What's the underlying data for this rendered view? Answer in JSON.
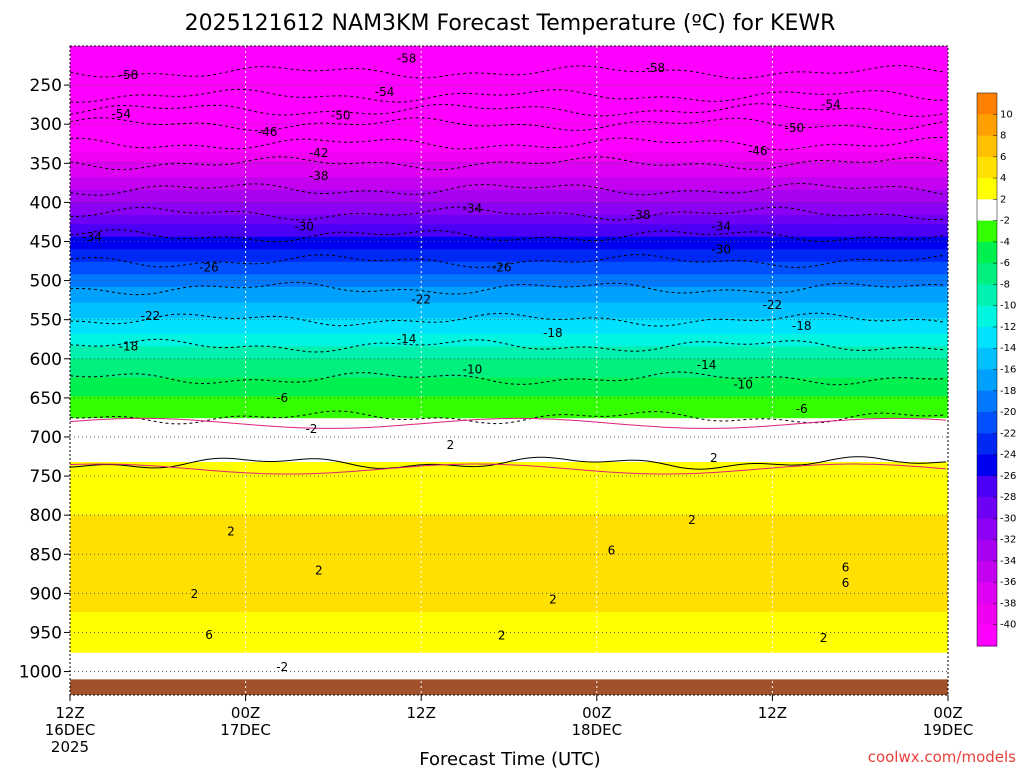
{
  "chart_data": {
    "type": "heatmap",
    "title": "2025121612 NAM3KM Forecast Temperature (ºC) for KEWR",
    "xlabel": "Forecast Time (UTC)",
    "ylabel": "",
    "credit": "coolwx.com/models",
    "x_axis": {
      "unit": "hours since 2025-12-16 12Z",
      "range": [
        0,
        60
      ],
      "ticks": [
        {
          "hour": 0,
          "lines": [
            "12Z",
            "16DEC",
            "2025"
          ]
        },
        {
          "hour": 12,
          "lines": [
            "00Z",
            "17DEC"
          ]
        },
        {
          "hour": 24,
          "lines": [
            "12Z"
          ]
        },
        {
          "hour": 36,
          "lines": [
            "00Z",
            "18DEC"
          ]
        },
        {
          "hour": 48,
          "lines": [
            "12Z"
          ]
        },
        {
          "hour": 60,
          "lines": [
            "00Z",
            "19DEC"
          ]
        }
      ]
    },
    "y_axis": {
      "unit": "hPa",
      "range": [
        1030,
        200
      ],
      "ticks": [
        250,
        300,
        350,
        400,
        450,
        500,
        550,
        600,
        650,
        700,
        750,
        800,
        850,
        900,
        950,
        1000
      ]
    },
    "colorbar": {
      "unit": "°C",
      "bins": [
        {
          "lo": -42,
          "hi": -40,
          "color": "#ff00ff"
        },
        {
          "lo": -40,
          "hi": -38,
          "color": "#f000f0"
        },
        {
          "lo": -38,
          "hi": -36,
          "color": "#dd00f2"
        },
        {
          "lo": -36,
          "hi": -34,
          "color": "#c300f0"
        },
        {
          "lo": -34,
          "hi": -32,
          "color": "#a800f0"
        },
        {
          "lo": -32,
          "hi": -30,
          "color": "#8c00f5"
        },
        {
          "lo": -30,
          "hi": -28,
          "color": "#6e00f5"
        },
        {
          "lo": -28,
          "hi": -26,
          "color": "#4b00f5"
        },
        {
          "lo": -26,
          "hi": -24,
          "color": "#0000f0"
        },
        {
          "lo": -24,
          "hi": -22,
          "color": "#0028f5"
        },
        {
          "lo": -22,
          "hi": -20,
          "color": "#0050ff"
        },
        {
          "lo": -20,
          "hi": -18,
          "color": "#0078ff"
        },
        {
          "lo": -18,
          "hi": -16,
          "color": "#00a0ff"
        },
        {
          "lo": -16,
          "hi": -14,
          "color": "#00c0ff"
        },
        {
          "lo": -14,
          "hi": -12,
          "color": "#00e0ff"
        },
        {
          "lo": -12,
          "hi": -10,
          "color": "#00f5e0"
        },
        {
          "lo": -10,
          "hi": -8,
          "color": "#00f0b0"
        },
        {
          "lo": -8,
          "hi": -6,
          "color": "#00f080"
        },
        {
          "lo": -6,
          "hi": -4,
          "color": "#00f050"
        },
        {
          "lo": -4,
          "hi": -2,
          "color": "#33ff00"
        },
        {
          "lo": -2,
          "hi": 2,
          "color": "#ffffff"
        },
        {
          "lo": 2,
          "hi": 4,
          "color": "#ffff00"
        },
        {
          "lo": 4,
          "hi": 6,
          "color": "#ffe000"
        },
        {
          "lo": 6,
          "hi": 8,
          "color": "#ffc000"
        },
        {
          "lo": 8,
          "hi": 10,
          "color": "#ffa000"
        },
        {
          "lo": 10,
          "hi": 12,
          "color": "#ff8000"
        }
      ],
      "tick_labels": [
        "10",
        "8",
        "6",
        "4",
        "2",
        "-2",
        "-4",
        "-6",
        "-8",
        "-10",
        "-12",
        "-14",
        "-16",
        "-18",
        "-20",
        "-22",
        "-24",
        "-26",
        "-28",
        "-30",
        "-32",
        "-34",
        "-36",
        "-38",
        "-40"
      ]
    },
    "ground_color": "#a0522d",
    "temperature_profile": [
      {
        "p": 200,
        "t": -60
      },
      {
        "p": 250,
        "t": -57
      },
      {
        "p": 300,
        "t": -46
      },
      {
        "p": 350,
        "t": -38
      },
      {
        "p": 400,
        "t": -32
      },
      {
        "p": 450,
        "t": -25
      },
      {
        "p": 500,
        "t": -19
      },
      {
        "p": 550,
        "t": -14
      },
      {
        "p": 600,
        "t": -8
      },
      {
        "p": 650,
        "t": -4
      },
      {
        "p": 700,
        "t": 0
      },
      {
        "p": 750,
        "t": 3
      },
      {
        "p": 800,
        "t": 4
      },
      {
        "p": 850,
        "t": 5
      },
      {
        "p": 900,
        "t": 5
      },
      {
        "p": 950,
        "t": 3
      },
      {
        "p": 1000,
        "t": 1
      },
      {
        "p": 1030,
        "t": 1
      }
    ],
    "contours": [
      {
        "level": -58,
        "labels": [
          {
            "hour": 4,
            "p": 237
          },
          {
            "hour": 23,
            "p": 216
          },
          {
            "hour": 40,
            "p": 228
          }
        ]
      },
      {
        "level": -54,
        "labels": [
          {
            "hour": 3.5,
            "p": 287
          },
          {
            "hour": 21.5,
            "p": 259
          },
          {
            "hour": 52,
            "p": 275
          }
        ]
      },
      {
        "level": -50,
        "labels": [
          {
            "hour": 18.5,
            "p": 289
          },
          {
            "hour": 49.5,
            "p": 305
          }
        ]
      },
      {
        "level": -46,
        "labels": [
          {
            "hour": 13.5,
            "p": 310
          },
          {
            "hour": 47,
            "p": 334
          }
        ]
      },
      {
        "level": -42,
        "labels": [
          {
            "hour": 17,
            "p": 337
          }
        ]
      },
      {
        "level": -38,
        "labels": [
          {
            "hour": 17,
            "p": 366
          },
          {
            "hour": 39,
            "p": 416
          }
        ]
      },
      {
        "level": -34,
        "labels": [
          {
            "hour": 1.5,
            "p": 444
          },
          {
            "hour": 27.5,
            "p": 408
          },
          {
            "hour": 44.5,
            "p": 431
          }
        ]
      },
      {
        "level": -30,
        "labels": [
          {
            "hour": 16,
            "p": 431
          },
          {
            "hour": 44.5,
            "p": 460
          }
        ]
      },
      {
        "level": -26,
        "labels": [
          {
            "hour": 9.5,
            "p": 483
          },
          {
            "hour": 29.5,
            "p": 483
          }
        ]
      },
      {
        "level": -22,
        "labels": [
          {
            "hour": 5.5,
            "p": 545
          },
          {
            "hour": 24,
            "p": 524
          },
          {
            "hour": 48,
            "p": 531
          }
        ]
      },
      {
        "level": -18,
        "labels": [
          {
            "hour": 4,
            "p": 584
          },
          {
            "hour": 33,
            "p": 567
          },
          {
            "hour": 50,
            "p": 558
          }
        ]
      },
      {
        "level": -14,
        "labels": [
          {
            "hour": 23,
            "p": 575
          },
          {
            "hour": 43.5,
            "p": 608
          }
        ]
      },
      {
        "level": -10,
        "labels": [
          {
            "hour": 27.5,
            "p": 614
          },
          {
            "hour": 46,
            "p": 633
          }
        ]
      },
      {
        "level": -6,
        "labels": [
          {
            "hour": 14.5,
            "p": 650
          },
          {
            "hour": 50,
            "p": 664
          }
        ]
      },
      {
        "level": -2,
        "labels": [
          {
            "hour": 16.5,
            "p": 690
          },
          {
            "hour": 14.5,
            "p": 994
          }
        ]
      },
      {
        "level": 2,
        "labels": [
          {
            "hour": 26,
            "p": 710
          },
          {
            "hour": 11,
            "p": 821
          },
          {
            "hour": 17,
            "p": 871
          },
          {
            "hour": 8.5,
            "p": 901
          },
          {
            "hour": 33,
            "p": 908
          },
          {
            "hour": 29.5,
            "p": 954
          },
          {
            "hour": 42.5,
            "p": 806
          },
          {
            "hour": 44,
            "p": 727
          },
          {
            "hour": 51.5,
            "p": 957
          }
        ]
      },
      {
        "level": 6,
        "labels": [
          {
            "hour": 9.5,
            "p": 953
          },
          {
            "hour": 37,
            "p": 845
          },
          {
            "hour": 53,
            "p": 867
          },
          {
            "hour": 53,
            "p": 887
          }
        ]
      }
    ]
  }
}
